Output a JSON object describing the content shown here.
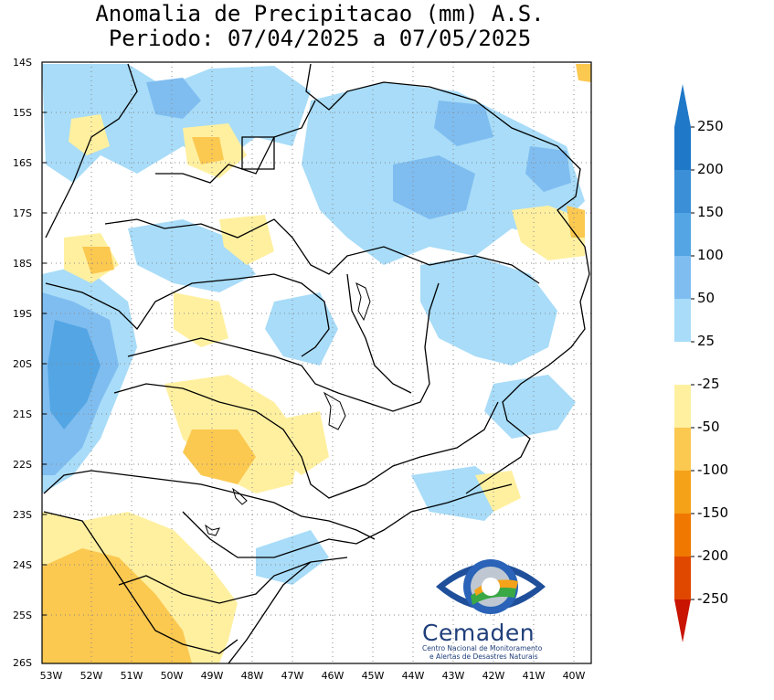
{
  "title": {
    "line1": "Anomalia de Precipitacao (mm) A.S.",
    "line2": "Periodo: 07/04/2025 a 07/05/2025"
  },
  "axes": {
    "lat_labels": [
      "14S",
      "15S",
      "16S",
      "17S",
      "18S",
      "19S",
      "20S",
      "21S",
      "22S",
      "23S",
      "24S",
      "25S",
      "26S"
    ],
    "lon_labels": [
      "53W",
      "52W",
      "51W",
      "50W",
      "49W",
      "48W",
      "47W",
      "46W",
      "45W",
      "44W",
      "43W",
      "42W",
      "41W",
      "40W"
    ]
  },
  "colorbar": {
    "labels": [
      "250",
      "200",
      "150",
      "100",
      "50",
      "25",
      "-25",
      "-50",
      "-100",
      "-150",
      "-200",
      "-250"
    ],
    "colors": [
      "#1f78c8",
      "#3a8fd6",
      "#54a5e4",
      "#7fbdf0",
      "#a8dcf8",
      "#ffffff",
      "#fff0a0",
      "#fbc850",
      "#f5a218",
      "#f07800",
      "#e04800",
      "#c81400"
    ],
    "top_arrow_color": "#1f78c8",
    "bottom_arrow_color": "#c81400"
  },
  "logo": {
    "name": "Cemaden",
    "subtitle_line1": "Centro Nacional de Monitoramento",
    "subtitle_line2": "e Alertas de Desastres Naturais"
  }
}
